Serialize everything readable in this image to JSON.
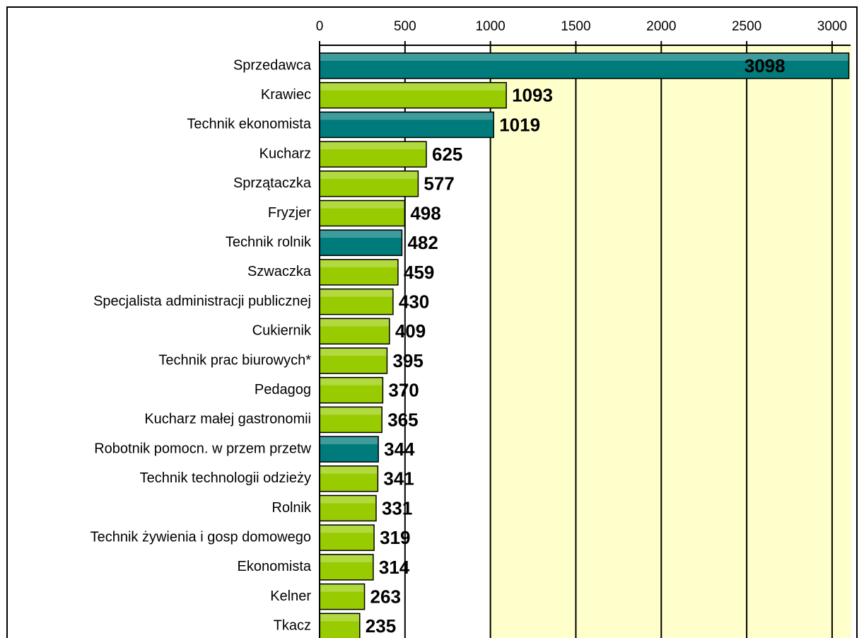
{
  "chart_data": {
    "type": "barh",
    "categories": [
      "Sprzedawca",
      "Krawiec",
      "Technik ekonomista",
      "Kucharz",
      "Sprzątaczka",
      "Fryzjer",
      "Technik rolnik",
      "Szwaczka",
      "Specjalista administracji publicznej",
      "Cukiernik",
      "Technik prac biurowych*",
      "Pedagog",
      "Kucharz małej gastronomii",
      "Robotnik pomocn. w przem przetw",
      "Technik technologii odzieży",
      "Rolnik",
      "Technik żywienia i gosp domowego",
      "Ekonomista",
      "Kelner",
      "Tkacz"
    ],
    "values": [
      3098,
      1093,
      1019,
      625,
      577,
      498,
      482,
      459,
      430,
      409,
      395,
      370,
      365,
      344,
      341,
      331,
      319,
      314,
      263,
      235
    ],
    "colors": [
      "#007b7b",
      "#99cc00",
      "#007b7b",
      "#99cc00",
      "#99cc00",
      "#99cc00",
      "#007b7b",
      "#99cc00",
      "#99cc00",
      "#99cc00",
      "#99cc00",
      "#99cc00",
      "#99cc00",
      "#007b7b",
      "#99cc00",
      "#99cc00",
      "#99cc00",
      "#99cc00",
      "#99cc00",
      "#99cc00"
    ],
    "xlim": [
      0,
      3108
    ],
    "xticks": [
      0,
      500,
      1000,
      1500,
      2000,
      2500,
      3000
    ],
    "grid": true
  }
}
